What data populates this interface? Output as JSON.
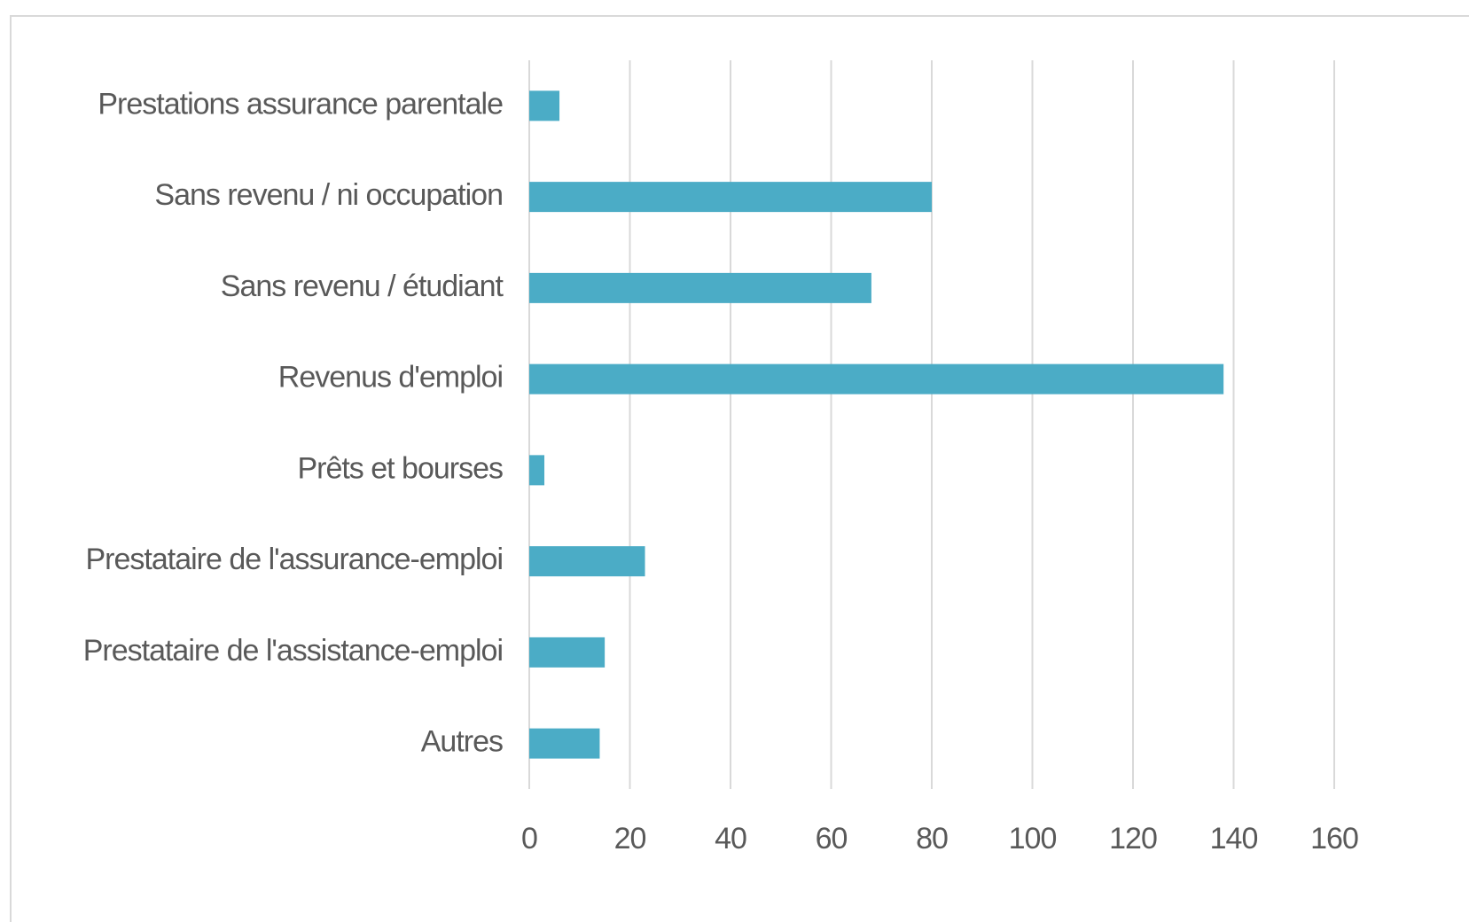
{
  "chart_data": {
    "type": "bar",
    "orientation": "horizontal",
    "categories": [
      "Prestations assurance parentale",
      "Sans revenu / ni occupation",
      "Sans revenu / étudiant",
      "Revenus d'emploi",
      "Prêts et bourses",
      "Prestataire de l'assurance-emploi",
      "Prestataire de l'assistance-emploi",
      "Autres"
    ],
    "values": [
      6,
      80,
      68,
      138,
      3,
      23,
      15,
      14
    ],
    "color": "#4bacc6",
    "xlim": [
      0,
      160
    ],
    "xticks": [
      0,
      20,
      40,
      60,
      80,
      100,
      120,
      140,
      160
    ],
    "grid": true
  }
}
